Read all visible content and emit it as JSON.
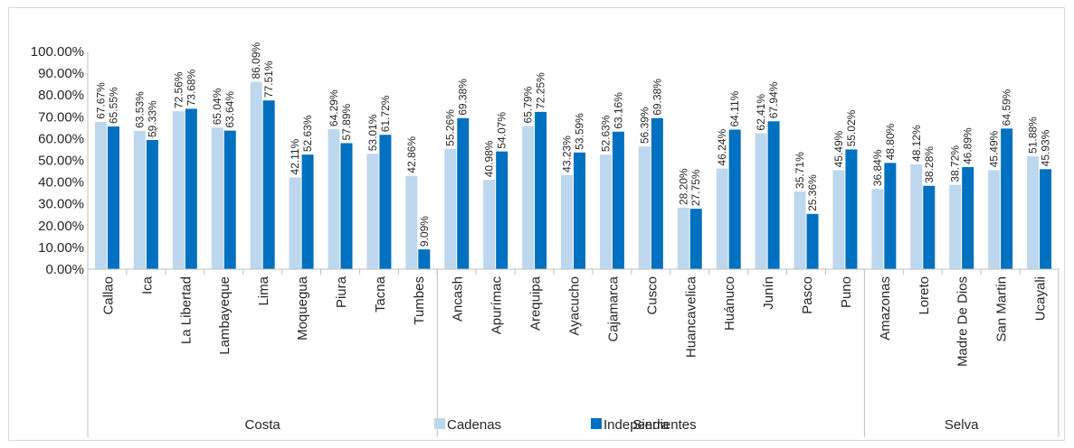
{
  "chart_data": {
    "type": "bar",
    "title": "",
    "xlabel": "",
    "ylabel": "",
    "ylim": [
      0,
      100
    ],
    "ytick_step": 10,
    "ytick_labels": [
      "0.00%",
      "10.00%",
      "20.00%",
      "30.00%",
      "40.00%",
      "50.00%",
      "60.00%",
      "70.00%",
      "80.00%",
      "90.00%",
      "100.00%"
    ],
    "grid": false,
    "legend_position": "bottom",
    "categories": [
      "Callao",
      "Ica",
      "La Libertad",
      "Lambayeque",
      "Lima",
      "Moquegua",
      "Piura",
      "Tacna",
      "Tumbes",
      "Ancash",
      "Apurímac",
      "Arequipa",
      "Ayacucho",
      "Cajamarca",
      "Cusco",
      "Huancavelica",
      "Huánuco",
      "Junín",
      "Pasco",
      "Puno",
      "Amazonas",
      "Loreto",
      "Madre De Dios",
      "San Martin",
      "Ucayali"
    ],
    "groups": [
      {
        "label": "Costa",
        "count": 9
      },
      {
        "label": "Sierra",
        "count": 11
      },
      {
        "label": "Selva",
        "count": 5
      }
    ],
    "series": [
      {
        "name": "Cadenas",
        "color": "#bdd7ee",
        "values": [
          67.67,
          63.53,
          72.56,
          65.04,
          86.09,
          42.11,
          64.29,
          53.01,
          42.86,
          55.26,
          40.98,
          65.79,
          43.23,
          52.63,
          56.39,
          28.2,
          46.24,
          62.41,
          35.71,
          45.49,
          36.84,
          48.12,
          38.72,
          45.49,
          51.88
        ],
        "labels": [
          "67.67%",
          "63.53%",
          "72.56%",
          "65.04%",
          "86.09%",
          "42.11%",
          "64.29%",
          "53.01%",
          "42.86%",
          "55.26%",
          "40.98%",
          "65.79%",
          "43.23%",
          "52.63%",
          "56.39%",
          "28.20%",
          "46.24%",
          "62.41%",
          "35.71%",
          "45.49%",
          "36.84%",
          "48.12%",
          "38.72%",
          "45.49%",
          "51.88%"
        ]
      },
      {
        "name": "Independientes",
        "color": "#0070c0",
        "values": [
          65.55,
          59.33,
          73.68,
          63.64,
          77.51,
          52.63,
          57.89,
          61.72,
          9.09,
          69.38,
          54.07,
          72.25,
          53.59,
          63.16,
          69.38,
          27.75,
          64.11,
          67.94,
          25.36,
          55.02,
          48.8,
          38.28,
          46.89,
          64.59,
          45.93
        ],
        "labels": [
          "65.55%",
          "59.33%",
          "73.68%",
          "63.64%",
          "77.51%",
          "52.63%",
          "57.89%",
          "61.72%",
          "9.09%",
          "69.38%",
          "54.07%",
          "72.25%",
          "53.59%",
          "63.16%",
          "69.38%",
          "27.75%",
          "64.11%",
          "67.94%",
          "25.36%",
          "55.02%",
          "48.80%",
          "38.28%",
          "46.89%",
          "64.59%",
          "45.93%"
        ]
      }
    ]
  }
}
